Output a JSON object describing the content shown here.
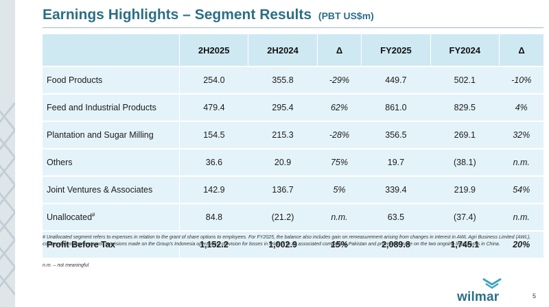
{
  "slide": {
    "title": "Earnings Highlights – Segment Results",
    "subtitle": "(PBT US$m)",
    "page_number": "5"
  },
  "table": {
    "headers": [
      "",
      "2H2025",
      "2H2024",
      "Δ",
      "FY2025",
      "FY2024",
      "Δ"
    ],
    "rows": [
      {
        "label": "Food Products",
        "sup": "",
        "values": [
          "254.0",
          "355.8",
          "-29%",
          "449.7",
          "502.1",
          "-10%"
        ]
      },
      {
        "label": "Feed and Industrial Products",
        "sup": "",
        "values": [
          "479.4",
          "295.4",
          "62%",
          "861.0",
          "829.5",
          "4%"
        ]
      },
      {
        "label": "Plantation and Sugar Milling",
        "sup": "",
        "values": [
          "154.5",
          "215.3",
          "-28%",
          "356.5",
          "269.1",
          "32%"
        ]
      },
      {
        "label": "Others",
        "sup": "",
        "values": [
          "36.6",
          "20.9",
          "75%",
          "19.7",
          "(38.1)",
          "n.m."
        ]
      },
      {
        "label": "Joint Ventures & Associates",
        "sup": "",
        "values": [
          "142.9",
          "136.7",
          "5%",
          "339.4",
          "219.9",
          "54%"
        ]
      },
      {
        "label": "Unallocated",
        "sup": "#",
        "values": [
          "84.8",
          "(21.2)",
          "n.m.",
          "63.5",
          "(37.4)",
          "n.m."
        ]
      },
      {
        "label": "Profit Before Tax",
        "sup": "",
        "values": [
          "1,152.2",
          "1,002.9",
          "15%",
          "2,089.8",
          "1,745.1",
          "20%"
        ]
      }
    ]
  },
  "footnotes": {
    "unallocated": "# Unallocated segment refers to expenses in relation to the grant of share options to employees. For FY2025, the balance also includes gain on remeasurement arising from changes in interest in AWL Agri Business Limited (AWL), compensation payments and provisions made on the Group's Indonesia operations, provision for losses in relation to an associated company in Pakistan and provisions made on the two ongoing legal cases in China.",
    "nm": "n.m. – not meaningful"
  },
  "logo": {
    "text": "wilmar"
  },
  "colors": {
    "title": "#2a6f86",
    "header_bg": "#cfe9f3",
    "row_bg": "#e4f3f9",
    "logo_mark": "#3ba3c0"
  },
  "icons": {
    "logo_mark": "wilmar-chevron-mark",
    "side_pattern": "diamond-lattice"
  }
}
